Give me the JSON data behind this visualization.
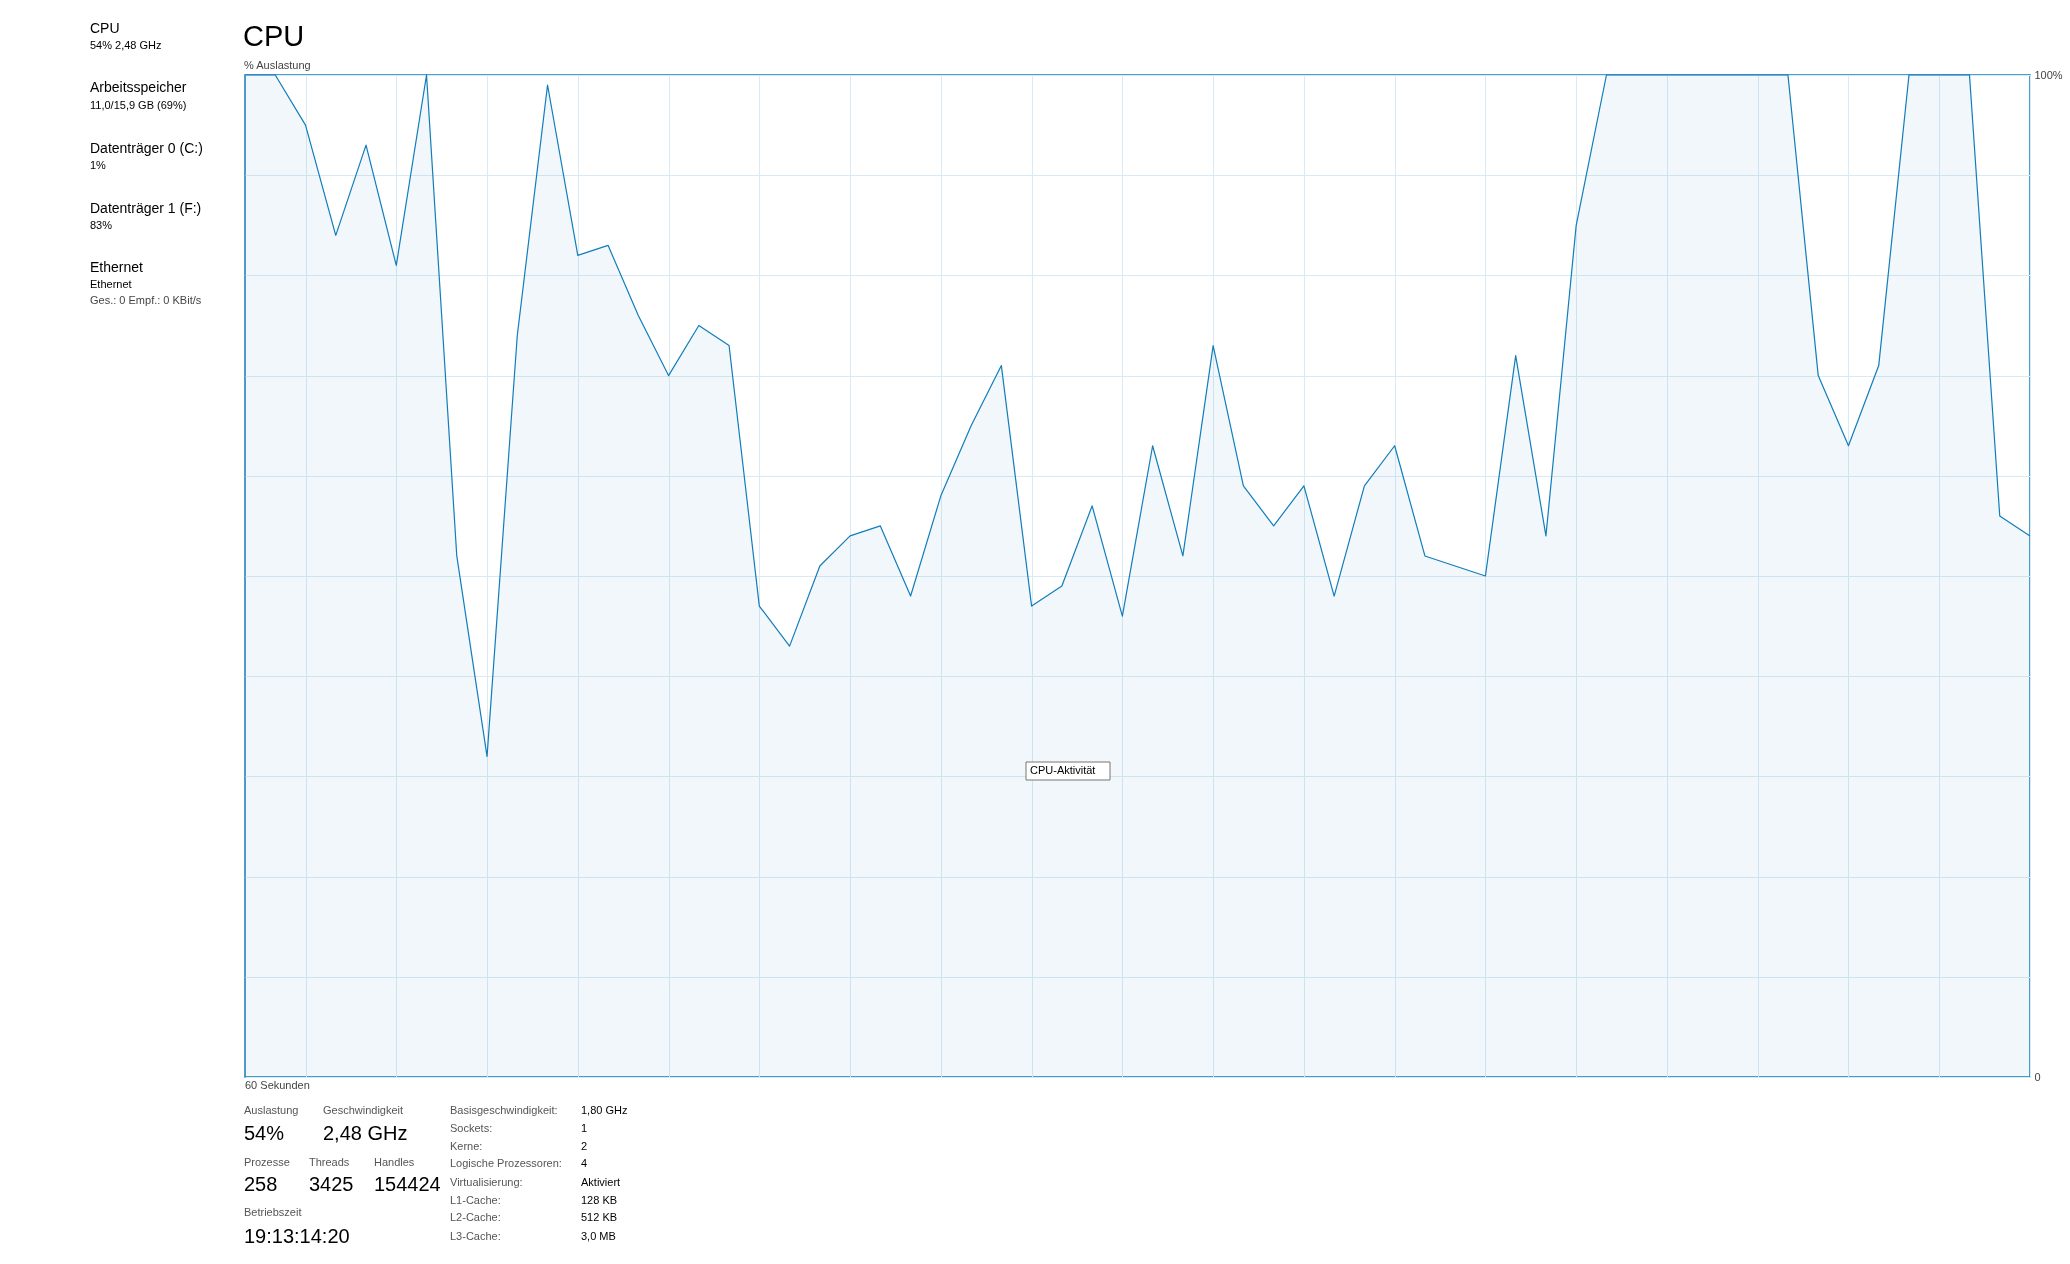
{
  "chart_data": {
    "type": "area",
    "title": "CPU",
    "ylabel": "% Auslastung",
    "categories": [
      null,
      null,
      null,
      null,
      null,
      null,
      null,
      null,
      null,
      null,
      null,
      null,
      null,
      null,
      null,
      null,
      null,
      null,
      null,
      null,
      null,
      null,
      null,
      null,
      null,
      null,
      null,
      null,
      null,
      null,
      null,
      null,
      null,
      null,
      null,
      null,
      null,
      null,
      null,
      null,
      null,
      null,
      null,
      null,
      null,
      null,
      null,
      null,
      null,
      null,
      null,
      null,
      null,
      null,
      null,
      null,
      null,
      null,
      null,
      null
    ],
    "series": [
      {
        "color": "#117dbb",
        "values": [
          100,
          100,
          95,
          84,
          93,
          81,
          100,
          52,
          32,
          74,
          99,
          82,
          83,
          76,
          70,
          75,
          73,
          47,
          43,
          51,
          54,
          55,
          48,
          58,
          65,
          71,
          47,
          49,
          57,
          46,
          63,
          52,
          73,
          59,
          55,
          59,
          48,
          59,
          63,
          52,
          51,
          50,
          72,
          54,
          85,
          100,
          100,
          100,
          100,
          100,
          100,
          100,
          70,
          63,
          71,
          100,
          100,
          100,
          56,
          54
        ]
      }
    ],
    "ylim": [
      0,
      100
    ],
    "yticks": [
      {
        "value": 0,
        "label": "0"
      },
      {
        "value": 10,
        "label": null
      },
      {
        "value": 20,
        "label": null
      },
      {
        "value": 30,
        "label": null
      },
      {
        "value": 40,
        "label": null
      },
      {
        "value": 50,
        "label": null
      },
      {
        "value": 60,
        "label": null
      },
      {
        "value": 70,
        "label": null
      },
      {
        "value": 80,
        "label": null
      },
      {
        "value": 90,
        "label": null
      },
      {
        "value": 100,
        "label": "100%"
      }
    ],
    "grid": true,
    "annotations": [
      "60 Sekunden",
      "CPU",
      "54% 2,48 GHz",
      "Arbeitsspeicher",
      "11,0/15,9 GB (69%)",
      "Datenträger 0 (C:)",
      "1%",
      "Datenträger 1 (F:)",
      "83%",
      "Ethernet",
      "Ethernet",
      "Ges.: 0 Empf.: 0 KBit/s",
      "CPU-Aktivität",
      "Auslastung",
      "54%",
      "Geschwindigkeit",
      "2,48 GHz",
      "Prozesse",
      "258",
      "Threads",
      "3425",
      "Handles",
      "154424",
      "Betriebszeit",
      "19:13:14:20",
      "Basisgeschwindigkeit:",
      "1,80 GHz",
      "Sockets:",
      "1",
      "Kerne:",
      "2",
      "Logische Prozessoren:",
      "4",
      "Virtualisierung:",
      "Aktiviert",
      "L1-Cache:",
      "128 KB",
      "L2-Cache:",
      "512 KB",
      "L3-Cache:",
      "3,0 MB"
    ]
  }
}
